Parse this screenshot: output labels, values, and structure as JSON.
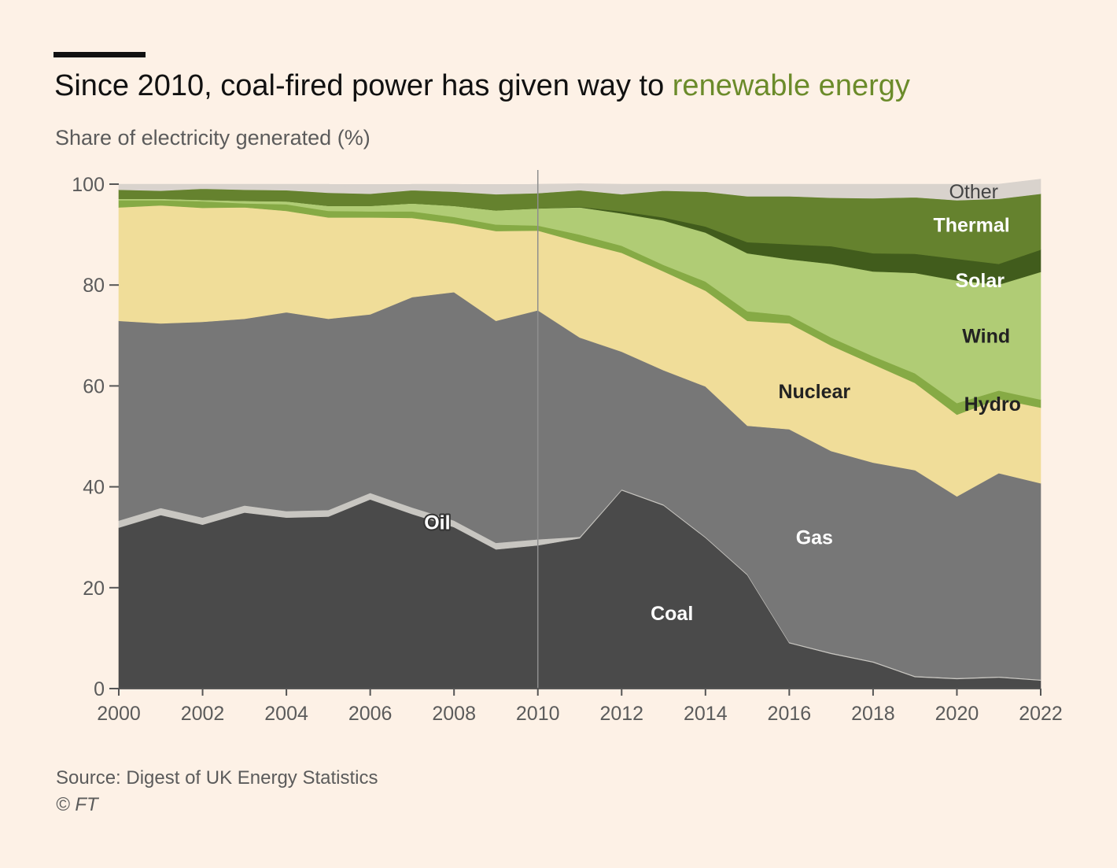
{
  "header": {
    "title_prefix": "Since 2010, coal-fired power has given way to ",
    "title_highlight": "renewable energy",
    "highlight_color": "#6b8b2a",
    "subtitle": "Share of electricity generated (%)"
  },
  "footer": {
    "source": "Source: Digest of UK Energy Statistics",
    "copyright": "© FT"
  },
  "chart_data": {
    "type": "area",
    "stacked": true,
    "title": "Since 2010, coal-fired power has given way to renewable energy",
    "ylabel": "Share of electricity generated (%)",
    "xlabel": "",
    "xlim": [
      2000,
      2022
    ],
    "ylim": [
      0,
      100
    ],
    "x_ticks": [
      "2000",
      "2002",
      "2004",
      "2006",
      "2008",
      "2010",
      "2012",
      "2014",
      "2016",
      "2018",
      "2020",
      "2022"
    ],
    "y_ticks": [
      "0",
      "20",
      "40",
      "60",
      "80",
      "100"
    ],
    "reference_line_x": 2010,
    "x": [
      2000,
      2001,
      2002,
      2003,
      2004,
      2005,
      2006,
      2007,
      2008,
      2009,
      2010,
      2011,
      2012,
      2013,
      2014,
      2015,
      2016,
      2017,
      2018,
      2019,
      2020,
      2021,
      2022
    ],
    "series": [
      {
        "name": "Coal",
        "color": "#4a4a4a",
        "label_color": "#ffffff",
        "values": [
          31.9,
          34.4,
          32.5,
          34.9,
          33.9,
          34.1,
          37.5,
          34.6,
          32.0,
          27.6,
          28.4,
          29.8,
          39.3,
          36.3,
          29.9,
          22.5,
          9.0,
          6.9,
          5.2,
          2.3,
          1.9,
          2.2,
          1.6
        ]
      },
      {
        "name": "Oil",
        "color": "#c8c6c1",
        "label_color": "#ffffff",
        "values": [
          1.4,
          1.4,
          1.4,
          1.4,
          1.3,
          1.3,
          1.3,
          1.3,
          1.3,
          1.3,
          1.2,
          0.3,
          0.2,
          0.2,
          0.2,
          0.2,
          0.2,
          0.2,
          0.2,
          0.2,
          0.2,
          0.2,
          0.2
        ]
      },
      {
        "name": "Gas",
        "color": "#777777",
        "label_color": "#ffffff",
        "values": [
          39.6,
          36.6,
          38.8,
          37.0,
          39.4,
          37.9,
          35.4,
          41.7,
          45.3,
          44.0,
          45.4,
          39.5,
          27.3,
          26.6,
          29.8,
          29.4,
          42.2,
          40.0,
          39.4,
          40.8,
          36.0,
          40.3,
          38.9
        ]
      },
      {
        "name": "Nuclear",
        "color": "#f0dd99",
        "label_color": "#222222",
        "values": [
          22.5,
          23.4,
          22.6,
          22.1,
          20.1,
          20.1,
          19.2,
          15.7,
          13.6,
          17.8,
          15.8,
          18.9,
          19.6,
          19.6,
          19.0,
          20.8,
          21.0,
          20.9,
          19.5,
          17.3,
          16.2,
          14.7,
          15.0
        ]
      },
      {
        "name": "Hydro",
        "color": "#86aa45",
        "label_color": "#222222",
        "values": [
          1.4,
          1.0,
          1.3,
          0.8,
          1.3,
          1.3,
          1.2,
          1.3,
          1.3,
          1.3,
          1.0,
          1.5,
          1.4,
          1.3,
          1.8,
          1.9,
          1.6,
          1.6,
          1.6,
          1.9,
          2.3,
          1.7,
          1.6
        ]
      },
      {
        "name": "Wind",
        "color": "#b0cc75",
        "label_color": "#222222",
        "values": [
          0.3,
          0.3,
          0.3,
          0.5,
          0.6,
          1.0,
          1.1,
          1.6,
          2.2,
          2.8,
          3.4,
          5.4,
          6.4,
          8.8,
          9.7,
          11.5,
          11.1,
          14.6,
          16.8,
          19.9,
          24.3,
          21.0,
          25.3
        ]
      },
      {
        "name": "Solar",
        "color": "#415c1c",
        "label_color": "#ffffff",
        "values": [
          0.0,
          0.0,
          0.0,
          0.0,
          0.0,
          0.0,
          0.0,
          0.0,
          0.0,
          0.0,
          0.0,
          0.1,
          0.4,
          0.6,
          1.2,
          2.2,
          3.0,
          3.5,
          3.6,
          3.8,
          4.3,
          4.1,
          4.4
        ]
      },
      {
        "name": "Thermal",
        "color": "#65822e",
        "label_color": "#ffffff",
        "values": [
          1.8,
          1.6,
          2.2,
          2.2,
          2.2,
          2.6,
          2.4,
          2.6,
          2.8,
          3.2,
          3.0,
          3.3,
          3.4,
          5.3,
          6.9,
          9.1,
          9.5,
          9.6,
          10.9,
          11.2,
          11.6,
          12.9,
          11.1
        ]
      },
      {
        "name": "Other",
        "color": "#d9d3cd",
        "label_color": "#444444",
        "values": [
          1.1,
          1.3,
          0.9,
          1.1,
          1.2,
          1.7,
          0.9,
          1.2,
          1.5,
          1.8,
          1.8,
          1.3,
          2.0,
          1.3,
          1.5,
          2.4,
          2.4,
          2.7,
          2.8,
          2.6,
          3.2,
          2.9,
          2.9
        ]
      }
    ],
    "labels": [
      {
        "series": "Coal",
        "text": "Coal",
        "x": 2013.2,
        "y": 15,
        "weight": "bold"
      },
      {
        "series": "Oil",
        "text": "Oil",
        "x": 2007.6,
        "y": 33,
        "weight": "bold",
        "outlined": true
      },
      {
        "series": "Gas",
        "text": "Gas",
        "x": 2016.6,
        "y": 30,
        "weight": "bold"
      },
      {
        "series": "Nuclear",
        "text": "Nuclear",
        "x": 2016.6,
        "y": 59,
        "weight": "bold"
      },
      {
        "series": "Hydro",
        "text": "Hydro",
        "x": 2020.85,
        "y": 56.5,
        "weight": "bold"
      },
      {
        "series": "Wind",
        "text": "Wind",
        "x": 2020.7,
        "y": 70,
        "weight": "bold"
      },
      {
        "series": "Solar",
        "text": "Solar",
        "x": 2020.55,
        "y": 81,
        "weight": "bold"
      },
      {
        "series": "Thermal",
        "text": "Thermal",
        "x": 2020.35,
        "y": 92,
        "weight": "bold"
      },
      {
        "series": "Other",
        "text": "Other",
        "x": 2020.4,
        "y": 98.6,
        "weight": "normal"
      }
    ]
  }
}
